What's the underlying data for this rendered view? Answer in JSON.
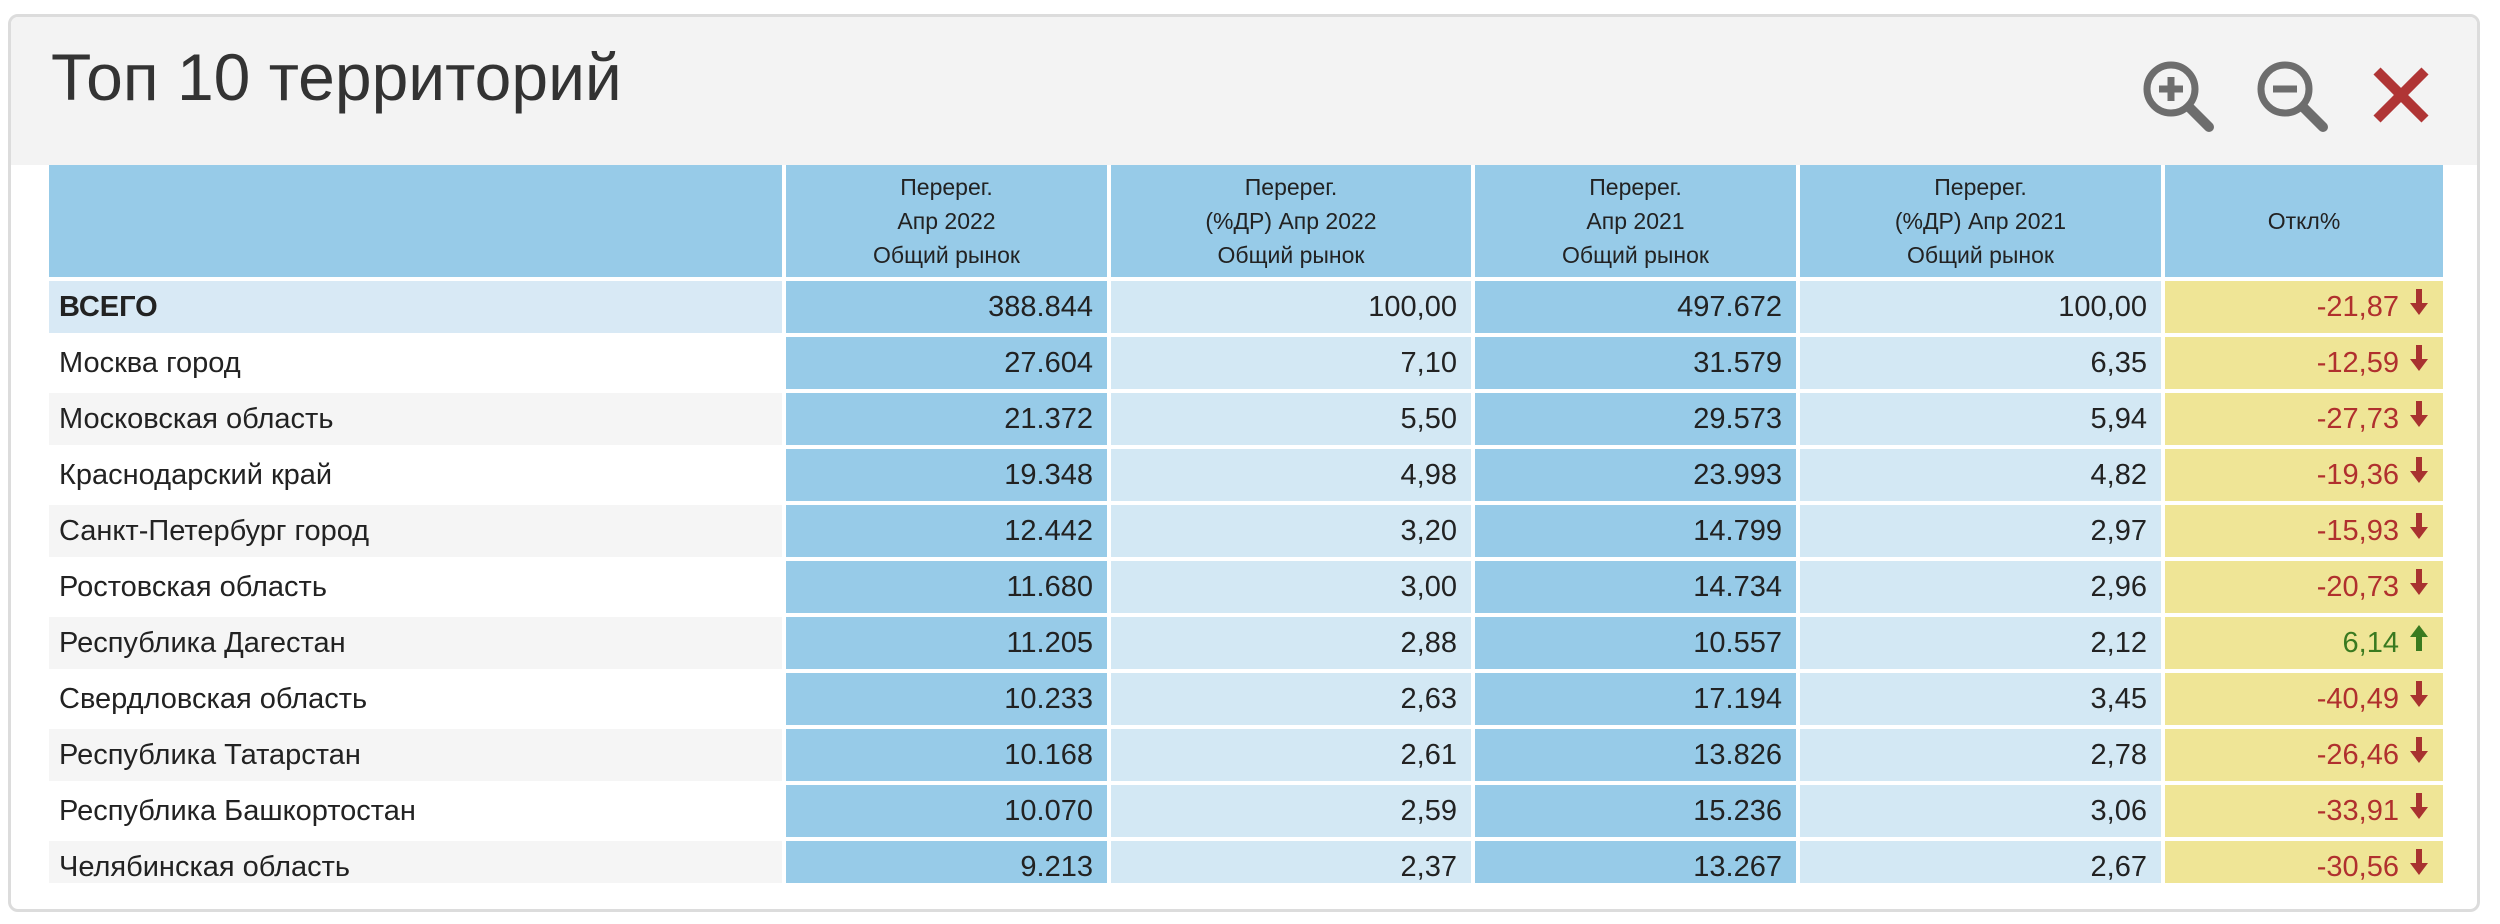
{
  "header": {
    "title": "Топ 10 территорий"
  },
  "table": {
    "columns": [
      [],
      [
        "Перерег.",
        "Апр 2022",
        "Общий рынок"
      ],
      [
        "Перерег.",
        "(%ДР) Апр 2022",
        "Общий рынок"
      ],
      [
        "Перерег.",
        "Апр 2021",
        "Общий рынок"
      ],
      [
        "Перерег.",
        "(%ДР) Апр 2021",
        "Общий рынок"
      ],
      [
        "Откл%"
      ]
    ],
    "rows": [
      [
        "ВСЕГО",
        "388.844",
        "100,00",
        "497.672",
        "100,00",
        "-21,87"
      ],
      [
        "Москва город",
        "27.604",
        "7,10",
        "31.579",
        "6,35",
        "-12,59"
      ],
      [
        "Московская область",
        "21.372",
        "5,50",
        "29.573",
        "5,94",
        "-27,73"
      ],
      [
        "Краснодарский край",
        "19.348",
        "4,98",
        "23.993",
        "4,82",
        "-19,36"
      ],
      [
        "Санкт-Петербург город",
        "12.442",
        "3,20",
        "14.799",
        "2,97",
        "-15,93"
      ],
      [
        "Ростовская область",
        "11.680",
        "3,00",
        "14.734",
        "2,96",
        "-20,73"
      ],
      [
        "Республика Дагестан",
        "11.205",
        "2,88",
        "10.557",
        "2,12",
        "6,14"
      ],
      [
        "Свердловская область",
        "10.233",
        "2,63",
        "17.194",
        "3,45",
        "-40,49"
      ],
      [
        "Республика Татарстан",
        "10.168",
        "2,61",
        "13.826",
        "2,78",
        "-26,46"
      ],
      [
        "Республика Башкортостан",
        "10.070",
        "2,59",
        "15.236",
        "3,06",
        "-33,91"
      ],
      [
        "Челябинская область",
        "9.213",
        "2,37",
        "13.267",
        "2,67",
        "-30,56"
      ]
    ]
  }
}
